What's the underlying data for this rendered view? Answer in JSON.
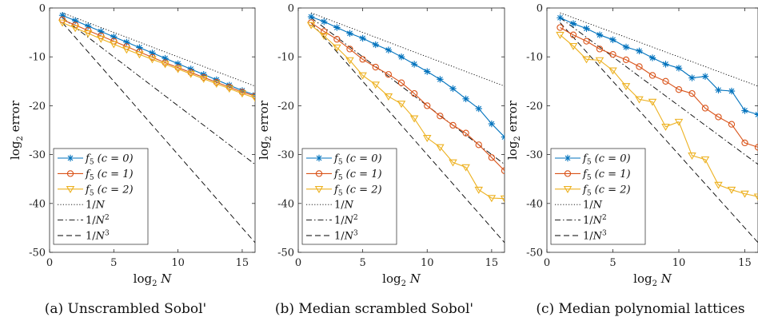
{
  "chart_data": [
    {
      "type": "line",
      "caption": "(a) Unscrambled Sobol'",
      "xlabel": "log2 N",
      "ylabel": "log2 error",
      "xlim": [
        0,
        16
      ],
      "ylim": [
        -50,
        0
      ],
      "xticks": [
        "0",
        "5",
        "10",
        "15"
      ],
      "yticks": [
        "0",
        "-10",
        "-20",
        "-30",
        "-40",
        "-50"
      ],
      "legend_position": "bottom-left",
      "x": [
        1,
        2,
        3,
        4,
        5,
        6,
        7,
        8,
        9,
        10,
        11,
        12,
        13,
        14,
        15,
        16
      ],
      "series": [
        {
          "name": "f5 (c = 0)",
          "color": "#0072BD",
          "marker": "star",
          "style": "solid",
          "values": [
            -1.5,
            -2.6,
            -3.7,
            -4.8,
            -5.9,
            -7.0,
            -8.1,
            -9.2,
            -10.3,
            -11.4,
            -12.5,
            -13.6,
            -14.7,
            -15.8,
            -16.9,
            -17.8
          ]
        },
        {
          "name": "f5 (c = 1)",
          "color": "#D95319",
          "marker": "circle",
          "style": "solid",
          "values": [
            -2.4,
            -3.5,
            -4.6,
            -5.7,
            -6.8,
            -7.9,
            -9.0,
            -10.1,
            -11.2,
            -12.2,
            -13.2,
            -14.2,
            -15.2,
            -16.2,
            -17.2,
            -18.0
          ]
        },
        {
          "name": "f5 (c = 2)",
          "color": "#EDB120",
          "marker": "triangle-down",
          "style": "solid",
          "values": [
            -3.0,
            -4.1,
            -5.2,
            -6.3,
            -7.4,
            -8.5,
            -9.5,
            -10.5,
            -11.5,
            -12.5,
            -13.5,
            -14.5,
            -15.5,
            -16.5,
            -17.5,
            -18.4
          ]
        },
        {
          "name": "1/N",
          "color": "#000000",
          "marker": "none",
          "style": "dotted",
          "values": [
            -1,
            -2,
            -3,
            -4,
            -5,
            -6,
            -7,
            -8,
            -9,
            -10,
            -11,
            -12,
            -13,
            -14,
            -15,
            -16
          ]
        },
        {
          "name": "1/N²",
          "color": "#000000",
          "marker": "none",
          "style": "dashdot",
          "values": [
            -2,
            -4,
            -6,
            -8,
            -10,
            -12,
            -14,
            -16,
            -18,
            -20,
            -22,
            -24,
            -26,
            -28,
            -30,
            -32
          ]
        },
        {
          "name": "1/N³",
          "color": "#000000",
          "marker": "none",
          "style": "dashed",
          "values": [
            -3,
            -6,
            -9,
            -12,
            -15,
            -18,
            -21,
            -24,
            -27,
            -30,
            -33,
            -36,
            -39,
            -42,
            -45,
            -48
          ]
        }
      ]
    },
    {
      "type": "line",
      "caption": "(b) Median scrambled Sobol'",
      "xlabel": "log2 N",
      "ylabel": "log2 error",
      "xlim": [
        0,
        16
      ],
      "ylim": [
        -50,
        0
      ],
      "xticks": [
        "0",
        "5",
        "10",
        "15"
      ],
      "yticks": [
        "0",
        "-10",
        "-20",
        "-30",
        "-40",
        "-50"
      ],
      "legend_position": "bottom-left",
      "x": [
        1,
        2,
        3,
        4,
        5,
        6,
        7,
        8,
        9,
        10,
        11,
        12,
        13,
        14,
        15,
        16
      ],
      "series": [
        {
          "name": "f5 (c = 0)",
          "color": "#0072BD",
          "marker": "star",
          "style": "solid",
          "values": [
            -1.8,
            -2.8,
            -4.0,
            -5.2,
            -6.2,
            -7.5,
            -8.6,
            -10.0,
            -11.5,
            -13.0,
            -14.6,
            -16.5,
            -18.6,
            -20.6,
            -23.7,
            -26.4
          ]
        },
        {
          "name": "f5 (c = 1)",
          "color": "#D95319",
          "marker": "circle",
          "style": "solid",
          "values": [
            -3.0,
            -4.8,
            -6.4,
            -8.4,
            -10.5,
            -12.1,
            -13.6,
            -15.3,
            -17.5,
            -20.0,
            -22.1,
            -24.0,
            -25.6,
            -28.0,
            -30.6,
            -33.3
          ]
        },
        {
          "name": "f5 (c = 2)",
          "color": "#EDB120",
          "marker": "triangle-down",
          "style": "solid",
          "values": [
            -3.5,
            -5.7,
            -8.1,
            -10.7,
            -13.8,
            -15.7,
            -18.1,
            -19.6,
            -22.6,
            -26.6,
            -28.5,
            -31.6,
            -32.6,
            -37.2,
            -38.9,
            -39.0
          ]
        },
        {
          "name": "1/N",
          "color": "#000000",
          "marker": "none",
          "style": "dotted",
          "values": [
            -1,
            -2,
            -3,
            -4,
            -5,
            -6,
            -7,
            -8,
            -9,
            -10,
            -11,
            -12,
            -13,
            -14,
            -15,
            -16
          ]
        },
        {
          "name": "1/N²",
          "color": "#000000",
          "marker": "none",
          "style": "dashdot",
          "values": [
            -2,
            -4,
            -6,
            -8,
            -10,
            -12,
            -14,
            -16,
            -18,
            -20,
            -22,
            -24,
            -26,
            -28,
            -30,
            -32
          ]
        },
        {
          "name": "1/N³",
          "color": "#000000",
          "marker": "none",
          "style": "dashed",
          "values": [
            -3,
            -6,
            -9,
            -12,
            -15,
            -18,
            -21,
            -24,
            -27,
            -30,
            -33,
            -36,
            -39,
            -42,
            -45,
            -48
          ]
        }
      ]
    },
    {
      "type": "line",
      "caption": "(c) Median polynomial lattices",
      "xlabel": "log2 N",
      "ylabel": "log2 error",
      "xlim": [
        0,
        16
      ],
      "ylim": [
        -50,
        0
      ],
      "xticks": [
        "0",
        "5",
        "10",
        "15"
      ],
      "yticks": [
        "0",
        "-10",
        "-20",
        "-30",
        "-40",
        "-50"
      ],
      "legend_position": "bottom-left",
      "x": [
        1,
        2,
        3,
        4,
        5,
        6,
        7,
        8,
        9,
        10,
        11,
        12,
        13,
        14,
        15,
        16
      ],
      "series": [
        {
          "name": "f5 (c = 0)",
          "color": "#0072BD",
          "marker": "star",
          "style": "solid",
          "values": [
            -2.0,
            -3.2,
            -4.2,
            -5.5,
            -6.5,
            -8.0,
            -8.8,
            -10.2,
            -11.5,
            -12.3,
            -14.3,
            -14.0,
            -16.8,
            -17.0,
            -21.0,
            -21.8
          ]
        },
        {
          "name": "f5 (c = 1)",
          "color": "#D95319",
          "marker": "circle",
          "style": "solid",
          "values": [
            -4.0,
            -5.5,
            -6.8,
            -8.4,
            -9.5,
            -10.6,
            -12.0,
            -13.8,
            -15.0,
            -16.7,
            -17.5,
            -20.5,
            -22.3,
            -23.8,
            -27.6,
            -28.5
          ]
        },
        {
          "name": "f5 (c = 2)",
          "color": "#EDB120",
          "marker": "triangle-down",
          "style": "solid",
          "values": [
            -5.5,
            -7.8,
            -10.5,
            -10.7,
            -12.8,
            -16.0,
            -18.7,
            -19.2,
            -24.3,
            -23.3,
            -30.2,
            -31.0,
            -36.2,
            -37.2,
            -38.0,
            -38.6
          ]
        },
        {
          "name": "1/N",
          "color": "#000000",
          "marker": "none",
          "style": "dotted",
          "values": [
            -1,
            -2,
            -3,
            -4,
            -5,
            -6,
            -7,
            -8,
            -9,
            -10,
            -11,
            -12,
            -13,
            -14,
            -15,
            -16
          ]
        },
        {
          "name": "1/N²",
          "color": "#000000",
          "marker": "none",
          "style": "dashdot",
          "values": [
            -2,
            -4,
            -6,
            -8,
            -10,
            -12,
            -14,
            -16,
            -18,
            -20,
            -22,
            -24,
            -26,
            -28,
            -30,
            -32
          ]
        },
        {
          "name": "1/N³",
          "color": "#000000",
          "marker": "none",
          "style": "dashed",
          "values": [
            -3,
            -6,
            -9,
            -12,
            -15,
            -18,
            -21,
            -24,
            -27,
            -30,
            -33,
            -36,
            -39,
            -42,
            -45,
            -48
          ]
        }
      ]
    }
  ]
}
